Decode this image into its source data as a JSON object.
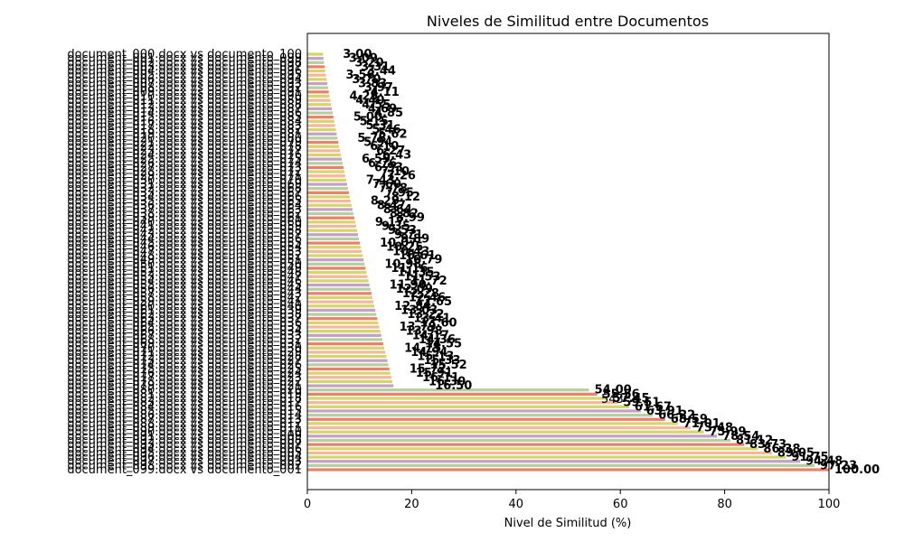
{
  "chart_data": {
    "type": "bar",
    "orientation": "horizontal",
    "title": "Niveles de Similitud entre Documentos",
    "xlabel": "Nivel de Similitud (%)",
    "ylabel": "",
    "xlim": [
      0,
      100
    ],
    "xticks": [
      0,
      20,
      40,
      60,
      80,
      100
    ],
    "grid": false,
    "legend": "none",
    "bar_colors": [
      "#d4d56a",
      "#c4a2c5",
      "#b6cfa1",
      "#e8826a",
      "#d9d46e",
      "#f2b8a0"
    ],
    "value_groups": [
      {
        "from": 3.0,
        "to": 16.5,
        "count": 80
      },
      {
        "from": 54.0,
        "to": 100.0,
        "count": 20
      }
    ],
    "categories_prefix": "d",
    "data_label_precision": 2,
    "overlapping_label_hint": "543"
  }
}
